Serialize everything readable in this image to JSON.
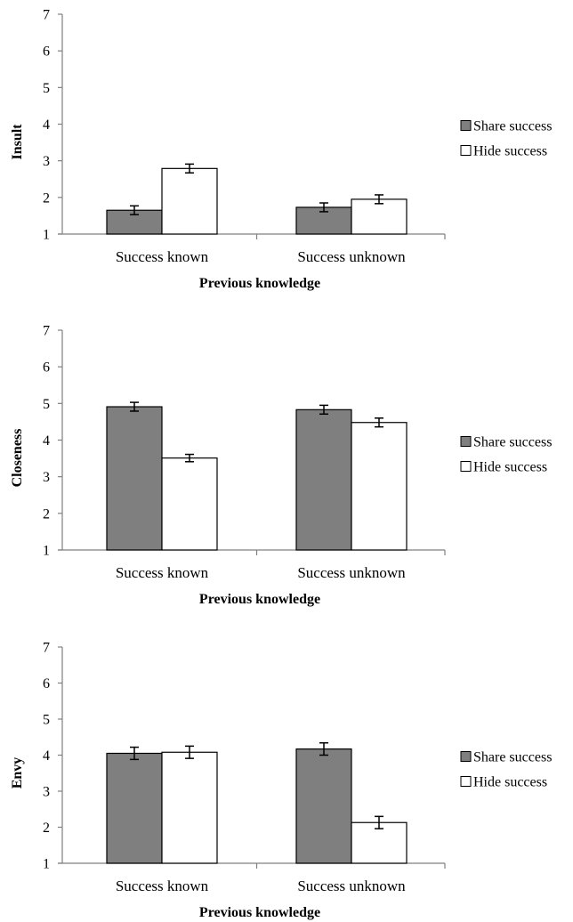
{
  "chart_data": [
    {
      "type": "bar",
      "title": "",
      "xlabel": "Previous knowledge",
      "ylabel": "Insult",
      "ylim": [
        1,
        7
      ],
      "yticks": [
        1,
        2,
        3,
        4,
        5,
        6,
        7
      ],
      "categories": [
        "Success known",
        "Success unknown"
      ],
      "series": [
        {
          "name": "Share success",
          "color": "#7f7f7f",
          "values": [
            1.65,
            1.73
          ],
          "errors": [
            0.12,
            0.12
          ]
        },
        {
          "name": "Hide success",
          "color": "#ffffff",
          "values": [
            2.79,
            1.95
          ],
          "errors": [
            0.12,
            0.12
          ]
        }
      ],
      "legend": "right",
      "grid": false
    },
    {
      "type": "bar",
      "title": "",
      "xlabel": "Previous knowledge",
      "ylabel": "Closeness",
      "ylim": [
        1,
        7
      ],
      "yticks": [
        1,
        2,
        3,
        4,
        5,
        6,
        7
      ],
      "categories": [
        "Success known",
        "Success unknown"
      ],
      "series": [
        {
          "name": "Share success",
          "color": "#7f7f7f",
          "values": [
            4.91,
            4.83
          ],
          "errors": [
            0.12,
            0.12
          ]
        },
        {
          "name": "Hide success",
          "color": "#ffffff",
          "values": [
            3.51,
            4.48
          ],
          "errors": [
            0.1,
            0.12
          ]
        }
      ],
      "legend": "right",
      "grid": false
    },
    {
      "type": "bar",
      "title": "",
      "xlabel": "Previous knowledge",
      "ylabel": "Envy",
      "ylim": [
        1,
        7
      ],
      "yticks": [
        1,
        2,
        3,
        4,
        5,
        6,
        7
      ],
      "categories": [
        "Success known",
        "Success unknown"
      ],
      "series": [
        {
          "name": "Share success",
          "color": "#7f7f7f",
          "values": [
            4.05,
            4.17
          ],
          "errors": [
            0.17,
            0.17
          ]
        },
        {
          "name": "Hide success",
          "color": "#ffffff",
          "values": [
            4.08,
            2.13
          ],
          "errors": [
            0.17,
            0.17
          ]
        }
      ],
      "legend": "right",
      "grid": false
    }
  ]
}
